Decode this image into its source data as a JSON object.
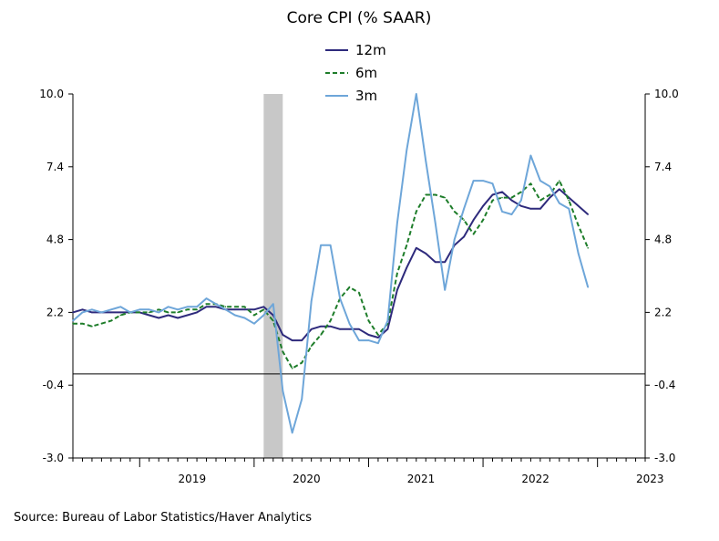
{
  "chart_data": {
    "type": "line",
    "title": "Core CPI (% SAAR)",
    "source": "Source:  Bureau of Labor Statistics/Haver Analytics",
    "ylim": [
      -3.0,
      10.0
    ],
    "yticks": [
      -3.0,
      -0.4,
      2.2,
      4.8,
      7.4,
      10.0
    ],
    "ytick_labels": [
      "-3.0",
      "-0.4",
      "2.2",
      "4.8",
      "7.4",
      "10.0"
    ],
    "x_year_labels": [
      "2019",
      "2020",
      "2021",
      "2022",
      "2023"
    ],
    "recession_shading": {
      "start": "2020-02",
      "end": "2020-04"
    },
    "zero_line": 0,
    "x_start": "2018-06",
    "x_end": "2023-06",
    "series": [
      {
        "name": "12m",
        "color": "#2e2a7c",
        "dash": "solid",
        "values": [
          [
            "2018-06",
            2.2
          ],
          [
            "2018-07",
            2.3
          ],
          [
            "2018-08",
            2.2
          ],
          [
            "2018-09",
            2.2
          ],
          [
            "2018-10",
            2.2
          ],
          [
            "2018-11",
            2.2
          ],
          [
            "2018-12",
            2.2
          ],
          [
            "2019-01",
            2.2
          ],
          [
            "2019-02",
            2.1
          ],
          [
            "2019-03",
            2.0
          ],
          [
            "2019-04",
            2.1
          ],
          [
            "2019-05",
            2.0
          ],
          [
            "2019-06",
            2.1
          ],
          [
            "2019-07",
            2.2
          ],
          [
            "2019-08",
            2.4
          ],
          [
            "2019-09",
            2.4
          ],
          [
            "2019-10",
            2.3
          ],
          [
            "2019-11",
            2.3
          ],
          [
            "2019-12",
            2.3
          ],
          [
            "2020-01",
            2.3
          ],
          [
            "2020-02",
            2.4
          ],
          [
            "2020-03",
            2.1
          ],
          [
            "2020-04",
            1.4
          ],
          [
            "2020-05",
            1.2
          ],
          [
            "2020-06",
            1.2
          ],
          [
            "2020-07",
            1.6
          ],
          [
            "2020-08",
            1.7
          ],
          [
            "2020-09",
            1.7
          ],
          [
            "2020-10",
            1.6
          ],
          [
            "2020-11",
            1.6
          ],
          [
            "2020-12",
            1.6
          ],
          [
            "2021-01",
            1.4
          ],
          [
            "2021-02",
            1.3
          ],
          [
            "2021-03",
            1.6
          ],
          [
            "2021-04",
            3.0
          ],
          [
            "2021-05",
            3.8
          ],
          [
            "2021-06",
            4.5
          ],
          [
            "2021-07",
            4.3
          ],
          [
            "2021-08",
            4.0
          ],
          [
            "2021-09",
            4.0
          ],
          [
            "2021-10",
            4.6
          ],
          [
            "2021-11",
            4.9
          ],
          [
            "2021-12",
            5.5
          ],
          [
            "2022-01",
            6.0
          ],
          [
            "2022-02",
            6.4
          ],
          [
            "2022-03",
            6.5
          ],
          [
            "2022-04",
            6.2
          ],
          [
            "2022-05",
            6.0
          ],
          [
            "2022-06",
            5.9
          ],
          [
            "2022-07",
            5.9
          ],
          [
            "2022-08",
            6.3
          ],
          [
            "2022-09",
            6.6
          ],
          [
            "2022-10",
            6.3
          ],
          [
            "2022-11",
            6.0
          ],
          [
            "2022-12",
            5.7
          ]
        ]
      },
      {
        "name": "6m",
        "color": "#1e7d2a",
        "dash": "dashed",
        "values": [
          [
            "2018-06",
            1.8
          ],
          [
            "2018-07",
            1.8
          ],
          [
            "2018-08",
            1.7
          ],
          [
            "2018-09",
            1.8
          ],
          [
            "2018-10",
            1.9
          ],
          [
            "2018-11",
            2.1
          ],
          [
            "2018-12",
            2.2
          ],
          [
            "2019-01",
            2.2
          ],
          [
            "2019-02",
            2.2
          ],
          [
            "2019-03",
            2.3
          ],
          [
            "2019-04",
            2.2
          ],
          [
            "2019-05",
            2.2
          ],
          [
            "2019-06",
            2.3
          ],
          [
            "2019-07",
            2.3
          ],
          [
            "2019-08",
            2.5
          ],
          [
            "2019-09",
            2.5
          ],
          [
            "2019-10",
            2.4
          ],
          [
            "2019-11",
            2.4
          ],
          [
            "2019-12",
            2.4
          ],
          [
            "2020-01",
            2.1
          ],
          [
            "2020-02",
            2.3
          ],
          [
            "2020-03",
            1.9
          ],
          [
            "2020-04",
            0.8
          ],
          [
            "2020-05",
            0.2
          ],
          [
            "2020-06",
            0.4
          ],
          [
            "2020-07",
            1.0
          ],
          [
            "2020-08",
            1.4
          ],
          [
            "2020-09",
            1.9
          ],
          [
            "2020-10",
            2.7
          ],
          [
            "2020-11",
            3.1
          ],
          [
            "2020-12",
            2.9
          ],
          [
            "2021-01",
            1.9
          ],
          [
            "2021-02",
            1.4
          ],
          [
            "2021-03",
            1.8
          ],
          [
            "2021-04",
            3.6
          ],
          [
            "2021-05",
            4.6
          ],
          [
            "2021-06",
            5.8
          ],
          [
            "2021-07",
            6.4
          ],
          [
            "2021-08",
            6.4
          ],
          [
            "2021-09",
            6.3
          ],
          [
            "2021-10",
            5.8
          ],
          [
            "2021-11",
            5.5
          ],
          [
            "2021-12",
            5.0
          ],
          [
            "2022-01",
            5.5
          ],
          [
            "2022-02",
            6.2
          ],
          [
            "2022-03",
            6.3
          ],
          [
            "2022-04",
            6.3
          ],
          [
            "2022-05",
            6.5
          ],
          [
            "2022-06",
            6.8
          ],
          [
            "2022-07",
            6.2
          ],
          [
            "2022-08",
            6.4
          ],
          [
            "2022-09",
            6.9
          ],
          [
            "2022-10",
            6.2
          ],
          [
            "2022-11",
            5.3
          ],
          [
            "2022-12",
            4.5
          ]
        ]
      },
      {
        "name": "3m",
        "color": "#6ea6d9",
        "dash": "solid",
        "values": [
          [
            "2018-06",
            1.9
          ],
          [
            "2018-07",
            2.2
          ],
          [
            "2018-08",
            2.3
          ],
          [
            "2018-09",
            2.2
          ],
          [
            "2018-10",
            2.3
          ],
          [
            "2018-11",
            2.4
          ],
          [
            "2018-12",
            2.2
          ],
          [
            "2019-01",
            2.3
          ],
          [
            "2019-02",
            2.3
          ],
          [
            "2019-03",
            2.2
          ],
          [
            "2019-04",
            2.4
          ],
          [
            "2019-05",
            2.3
          ],
          [
            "2019-06",
            2.4
          ],
          [
            "2019-07",
            2.4
          ],
          [
            "2019-08",
            2.7
          ],
          [
            "2019-09",
            2.5
          ],
          [
            "2019-10",
            2.3
          ],
          [
            "2019-11",
            2.1
          ],
          [
            "2019-12",
            2.0
          ],
          [
            "2020-01",
            1.8
          ],
          [
            "2020-02",
            2.1
          ],
          [
            "2020-03",
            2.5
          ],
          [
            "2020-04",
            -0.6
          ],
          [
            "2020-05",
            -2.1
          ],
          [
            "2020-06",
            -0.9
          ],
          [
            "2020-07",
            2.6
          ],
          [
            "2020-08",
            4.6
          ],
          [
            "2020-09",
            4.6
          ],
          [
            "2020-10",
            2.7
          ],
          [
            "2020-11",
            1.8
          ],
          [
            "2020-12",
            1.2
          ],
          [
            "2021-01",
            1.2
          ],
          [
            "2021-02",
            1.1
          ],
          [
            "2021-03",
            1.9
          ],
          [
            "2021-04",
            5.4
          ],
          [
            "2021-05",
            8.0
          ],
          [
            "2021-06",
            10.0
          ],
          [
            "2021-07",
            7.6
          ],
          [
            "2021-08",
            5.4
          ],
          [
            "2021-09",
            3.0
          ],
          [
            "2021-10",
            4.8
          ],
          [
            "2021-11",
            5.9
          ],
          [
            "2021-12",
            6.9
          ],
          [
            "2022-01",
            6.9
          ],
          [
            "2022-02",
            6.8
          ],
          [
            "2022-03",
            5.8
          ],
          [
            "2022-04",
            5.7
          ],
          [
            "2022-05",
            6.2
          ],
          [
            "2022-06",
            7.8
          ],
          [
            "2022-07",
            6.9
          ],
          [
            "2022-08",
            6.7
          ],
          [
            "2022-09",
            6.1
          ],
          [
            "2022-10",
            5.9
          ],
          [
            "2022-11",
            4.3
          ],
          [
            "2022-12",
            3.1
          ]
        ]
      }
    ]
  }
}
